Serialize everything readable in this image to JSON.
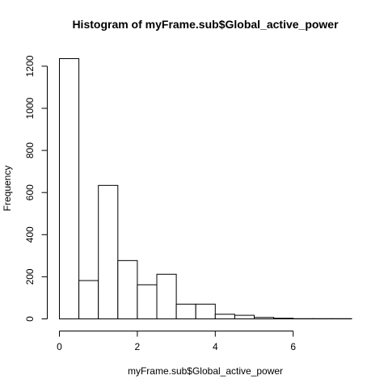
{
  "chart_data": {
    "type": "bar",
    "subtype": "histogram",
    "title": "Histogram of myFrame.sub$Global_active_power",
    "xlabel": "myFrame.sub$Global_active_power",
    "ylabel": "Frequency",
    "xlim": [
      0,
      7.5
    ],
    "ylim": [
      0,
      1240
    ],
    "x_ticks": [
      0,
      2,
      4,
      6
    ],
    "y_ticks": [
      0,
      200,
      400,
      600,
      800,
      1000,
      1200
    ],
    "grid": false,
    "bins": [
      {
        "start": 0.0,
        "end": 0.5,
        "value": 1236
      },
      {
        "start": 0.5,
        "end": 1.0,
        "value": 182
      },
      {
        "start": 1.0,
        "end": 1.5,
        "value": 634
      },
      {
        "start": 1.5,
        "end": 2.0,
        "value": 277
      },
      {
        "start": 2.0,
        "end": 2.5,
        "value": 162
      },
      {
        "start": 2.5,
        "end": 3.0,
        "value": 212
      },
      {
        "start": 3.0,
        "end": 3.5,
        "value": 70
      },
      {
        "start": 3.5,
        "end": 4.0,
        "value": 70
      },
      {
        "start": 4.0,
        "end": 4.5,
        "value": 22
      },
      {
        "start": 4.5,
        "end": 5.0,
        "value": 17
      },
      {
        "start": 5.0,
        "end": 5.5,
        "value": 7
      },
      {
        "start": 5.5,
        "end": 6.0,
        "value": 3
      },
      {
        "start": 6.0,
        "end": 6.5,
        "value": 1
      },
      {
        "start": 6.5,
        "end": 7.0,
        "value": 1
      },
      {
        "start": 7.0,
        "end": 7.5,
        "value": 1
      }
    ]
  }
}
